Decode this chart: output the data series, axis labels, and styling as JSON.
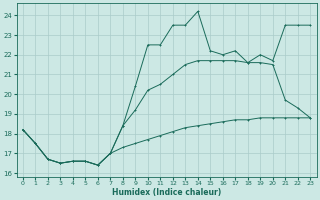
{
  "xlabel": "Humidex (Indice chaleur)",
  "bg_color": "#cce8e4",
  "grid_color": "#aaccca",
  "line_color": "#1a6b5a",
  "xlim": [
    -0.5,
    23.5
  ],
  "ylim": [
    15.8,
    24.6
  ],
  "yticks": [
    16,
    17,
    18,
    19,
    20,
    21,
    22,
    23,
    24
  ],
  "xticks": [
    0,
    1,
    2,
    3,
    4,
    5,
    6,
    7,
    8,
    9,
    10,
    11,
    12,
    13,
    14,
    15,
    16,
    17,
    18,
    19,
    20,
    21,
    22,
    23
  ],
  "line1_x": [
    0,
    1,
    2,
    3,
    4,
    5,
    6,
    7,
    8,
    9,
    10,
    11,
    12,
    13,
    14,
    15,
    16,
    17,
    18,
    19,
    20,
    21,
    22,
    23
  ],
  "line1_y": [
    18.2,
    17.5,
    16.7,
    16.5,
    16.6,
    16.6,
    16.4,
    17.0,
    17.3,
    17.5,
    17.7,
    17.9,
    18.1,
    18.3,
    18.4,
    18.5,
    18.6,
    18.7,
    18.7,
    18.8,
    18.8,
    18.8,
    18.8,
    18.8
  ],
  "line2_x": [
    0,
    1,
    2,
    3,
    4,
    5,
    6,
    7,
    8,
    9,
    10,
    11,
    12,
    13,
    14,
    15,
    16,
    17,
    18,
    19,
    20,
    21,
    22,
    23
  ],
  "line2_y": [
    18.2,
    17.5,
    16.7,
    16.5,
    16.6,
    16.6,
    16.4,
    17.0,
    18.4,
    19.2,
    20.2,
    20.5,
    21.0,
    21.5,
    21.7,
    21.7,
    21.7,
    21.7,
    21.6,
    21.6,
    21.5,
    19.7,
    19.3,
    18.8
  ],
  "line3_x": [
    0,
    1,
    2,
    3,
    4,
    5,
    6,
    7,
    8,
    9,
    10,
    11,
    12,
    13,
    14,
    15,
    16,
    17,
    18,
    19,
    20,
    21,
    22,
    23
  ],
  "line3_y": [
    18.2,
    17.5,
    16.7,
    16.5,
    16.6,
    16.6,
    16.4,
    17.0,
    18.4,
    20.4,
    22.5,
    22.5,
    23.5,
    23.5,
    24.2,
    22.2,
    22.0,
    22.2,
    21.6,
    22.0,
    21.7,
    23.5,
    23.5,
    23.5
  ]
}
